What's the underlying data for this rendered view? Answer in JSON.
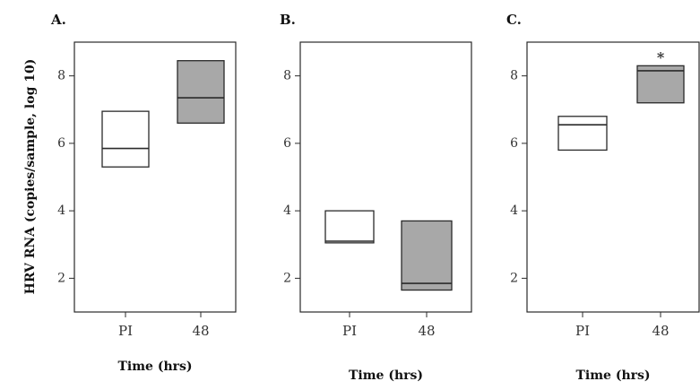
{
  "figure": {
    "ylabel": "HRV RNA (copies/sample, log 10)"
  },
  "colors": {
    "pi_fill": "#ffffff",
    "h48_fill": "#a8a8a8",
    "stroke": "#2a2a2a",
    "median": "#2a2a2a"
  },
  "chart_data": [
    {
      "type": "box",
      "panel": "A.",
      "categories": [
        "PI",
        "48"
      ],
      "xlabel": "Time (hrs)",
      "ylabel": "HRV RNA (copies/sample, log 10)",
      "ylim": [
        1.0,
        9.0
      ],
      "yticks": [
        2,
        4,
        6,
        8
      ],
      "series": [
        {
          "category": "PI",
          "q1": 5.3,
          "median": 5.85,
          "q3": 6.95,
          "fill": "white"
        },
        {
          "category": "48",
          "q1": 6.6,
          "median": 7.35,
          "q3": 8.45,
          "fill": "gray"
        }
      ],
      "annotations": []
    },
    {
      "type": "box",
      "panel": "B.",
      "categories": [
        "PI",
        "48"
      ],
      "xlabel": "Time (hrs)",
      "ylim": [
        1.0,
        9.0
      ],
      "yticks": [
        2,
        4,
        6,
        8
      ],
      "series": [
        {
          "category": "PI",
          "q1": 3.05,
          "median": 3.1,
          "q3": 4.0,
          "fill": "white"
        },
        {
          "category": "48",
          "q1": 1.65,
          "median": 1.85,
          "q3": 3.7,
          "fill": "gray"
        }
      ],
      "annotations": []
    },
    {
      "type": "box",
      "panel": "C.",
      "categories": [
        "PI",
        "48"
      ],
      "xlabel": "Time (hrs)",
      "ylim": [
        1.0,
        9.0
      ],
      "yticks": [
        2,
        4,
        6,
        8
      ],
      "series": [
        {
          "category": "PI",
          "q1": 5.8,
          "median": 6.55,
          "q3": 6.8,
          "fill": "white"
        },
        {
          "category": "48",
          "q1": 7.2,
          "median": 8.15,
          "q3": 8.3,
          "fill": "gray"
        }
      ],
      "annotations": [
        {
          "category": "48",
          "text": "*"
        }
      ]
    }
  ]
}
